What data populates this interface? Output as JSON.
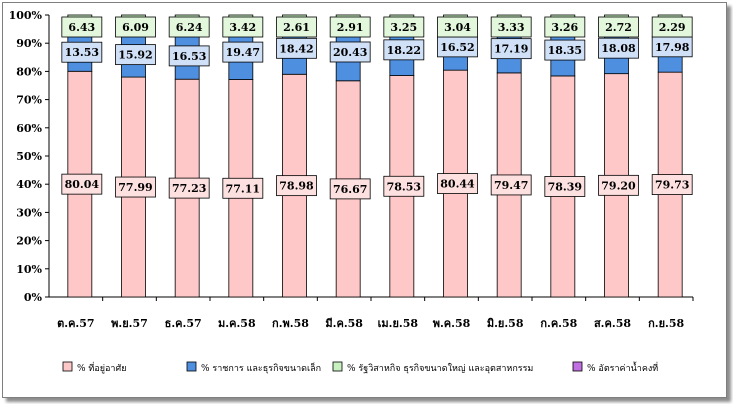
{
  "chart_data": {
    "type": "bar",
    "stacked": true,
    "ylim": [
      0,
      100
    ],
    "yticks": [
      0,
      10,
      20,
      30,
      40,
      50,
      60,
      70,
      80,
      90,
      100
    ],
    "ytick_labels": [
      "0%",
      "10%",
      "20%",
      "30%",
      "40%",
      "50%",
      "60%",
      "70%",
      "80%",
      "90%",
      "100%"
    ],
    "categories": [
      "ต.ค.57",
      "พ.ย.57",
      "ธ.ค.57",
      "ม.ค.58",
      "ก.พ.58",
      "มี.ค.58",
      "เม.ย.58",
      "พ.ค.58",
      "มิ.ย.58",
      "ก.ค.58",
      "ส.ค.58",
      "ก.ย.58"
    ],
    "grid": false,
    "legend_position": "bottom",
    "series": [
      {
        "name": "% ที่อยู่อาศัย",
        "color": "#ffc8c8",
        "label_fill": "#fde0e0",
        "values": [
          80.04,
          77.99,
          77.23,
          77.11,
          78.98,
          76.67,
          78.53,
          80.44,
          79.47,
          78.39,
          79.2,
          79.73
        ],
        "labels": [
          "80.04",
          "77.99",
          "77.23",
          "77.11",
          "78.98",
          "76.67",
          "78.53",
          "80.44",
          "79.47",
          "78.39",
          "79.20",
          "79.73"
        ]
      },
      {
        "name": "% ราชการ และธุรกิจขนาดเล็ก",
        "color": "#4f8fe0",
        "label_fill": "#cfe0f7",
        "values": [
          13.53,
          15.92,
          16.53,
          19.47,
          18.42,
          20.43,
          18.22,
          16.52,
          17.19,
          18.35,
          18.08,
          17.98
        ],
        "labels": [
          "13.53",
          "15.92",
          "16.53",
          "19.47",
          "18.42",
          "20.43",
          "18.22",
          "16.52",
          "17.19",
          "18.35",
          "18.08",
          "17.98"
        ]
      },
      {
        "name": "% รัฐวิสาหกิจ ธุรกิจขนาดใหญ่ และอุตสาหกรรม",
        "color": "#c8f0c0",
        "label_fill": "#e2f7dc",
        "values": [
          6.43,
          6.09,
          6.24,
          3.42,
          2.61,
          2.91,
          3.25,
          3.04,
          3.33,
          3.26,
          2.72,
          2.29
        ],
        "labels": [
          "6.43",
          "6.09",
          "6.24",
          "3.42",
          "2.61",
          "2.91",
          "3.25",
          "3.04",
          "3.33",
          "3.26",
          "2.72",
          "2.29"
        ]
      },
      {
        "name": "% อัตราค่าน้ำคงที่",
        "color": "#c070e0",
        "values": [
          0,
          0,
          0,
          0,
          0,
          0,
          0,
          0,
          0,
          0,
          0,
          0
        ]
      }
    ]
  }
}
